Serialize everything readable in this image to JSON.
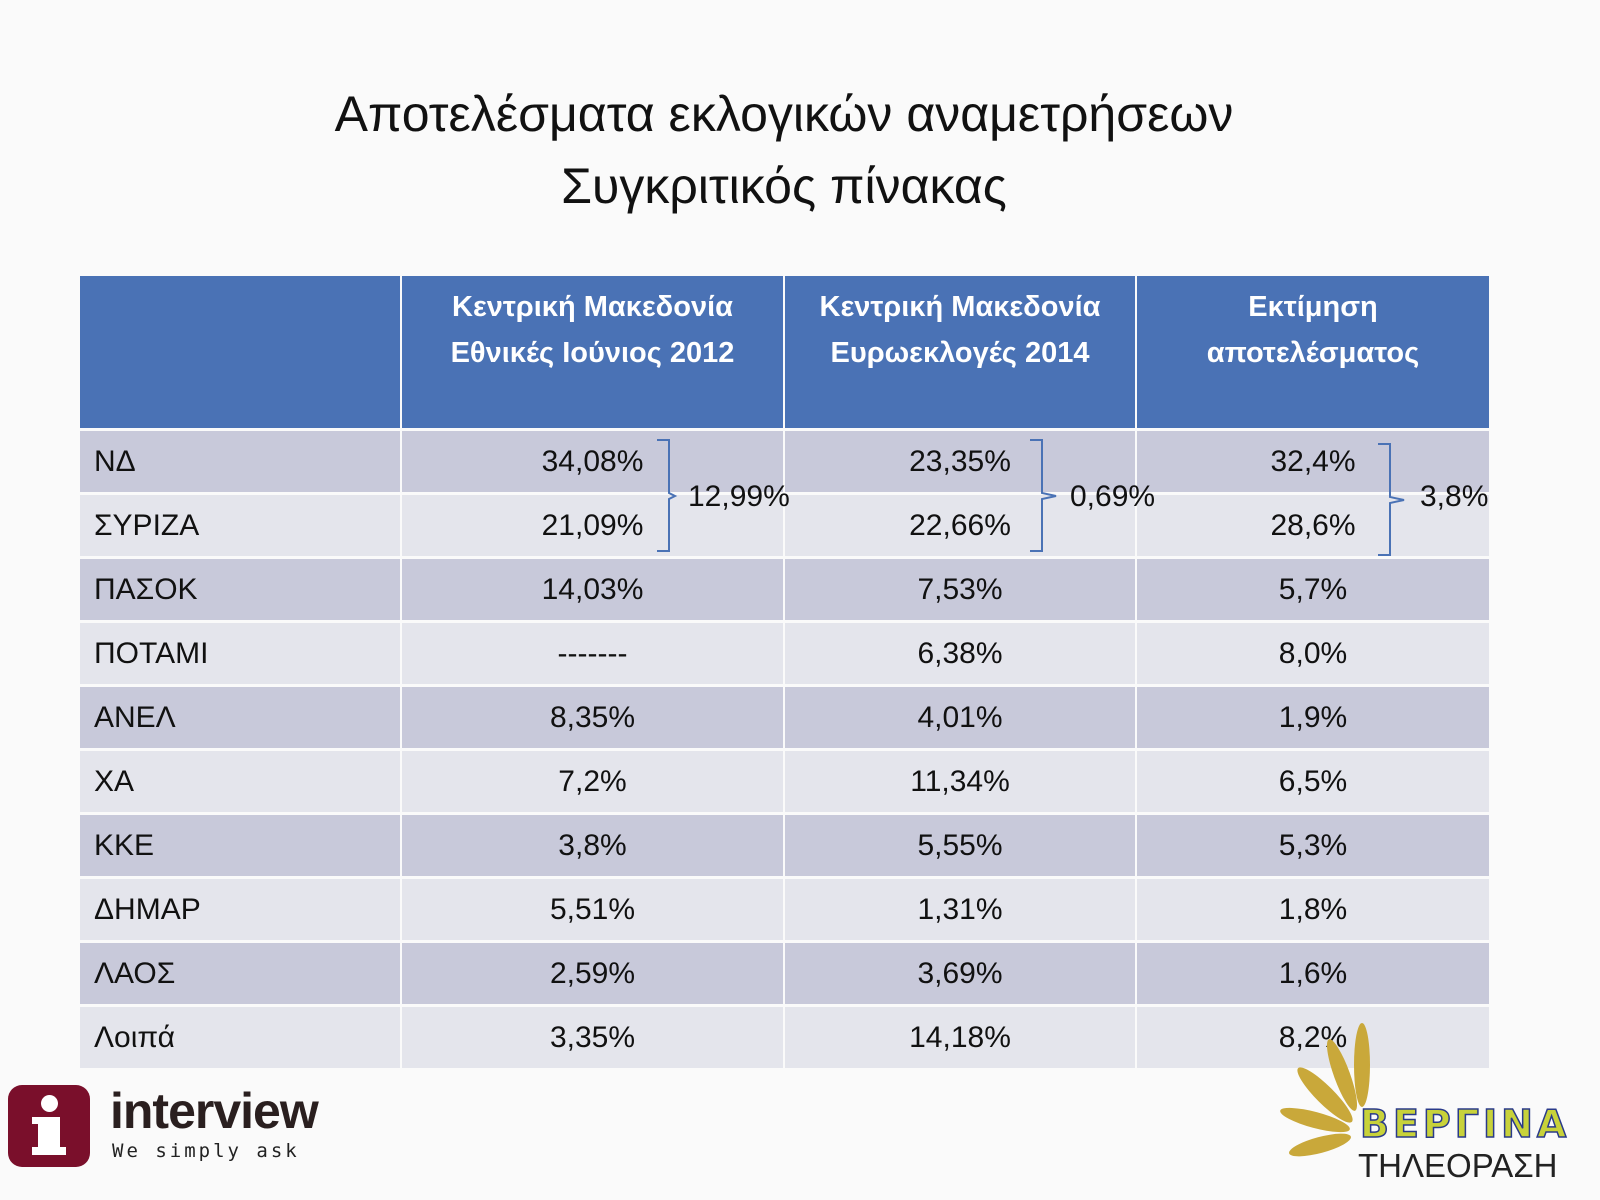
{
  "title": {
    "line1": "Αποτελέσματα εκλογικών αναμετρήσεων",
    "line2": "Συγκριτικός πίνακας"
  },
  "table": {
    "headers": [
      "",
      "Κεντρική Μακεδονία Εθνικές Ιούνιος 2012",
      "Κεντρική Μακεδονία Ευρωεκλογές 2014",
      "Εκτίμηση αποτελέσματος"
    ],
    "rows": [
      {
        "party": "ΝΔ",
        "v2012": "34,08%",
        "v2014": "23,35%",
        "estimate": "32,4%"
      },
      {
        "party": "ΣΥΡΙΖΑ",
        "v2012": "21,09%",
        "v2014": "22,66%",
        "estimate": "28,6%"
      },
      {
        "party": "ΠΑΣΟΚ",
        "v2012": "14,03%",
        "v2014": "7,53%",
        "estimate": "5,7%"
      },
      {
        "party": "ΠΟΤΑΜΙ",
        "v2012": "-------",
        "v2014": "6,38%",
        "estimate": "8,0%"
      },
      {
        "party": "ΑΝΕΛ",
        "v2012": "8,35%",
        "v2014": "4,01%",
        "estimate": "1,9%"
      },
      {
        "party": "ΧΑ",
        "v2012": "7,2%",
        "v2014": "11,34%",
        "estimate": "6,5%"
      },
      {
        "party": "ΚΚΕ",
        "v2012": "3,8%",
        "v2014": "5,55%",
        "estimate": "5,3%"
      },
      {
        "party": "ΔΗΜΑΡ",
        "v2012": "5,51%",
        "v2014": "1,31%",
        "estimate": "1,8%"
      },
      {
        "party": "ΛΑΟΣ",
        "v2012": "2,59%",
        "v2014": "3,69%",
        "estimate": "1,6%"
      },
      {
        "party": "Λοιπά",
        "v2012": "3,35%",
        "v2014": "14,18%",
        "estimate": "8,2%"
      }
    ],
    "differences": {
      "v2012": "12,99%",
      "v2014": "0,69%",
      "estimate": "3,8%"
    }
  },
  "logos": {
    "interview": {
      "name": "interview",
      "tagline": "We simply ask",
      "color": "#7a0f2b"
    },
    "vergina": {
      "name": "ΒΕΡΓΙΝΑ",
      "subtitle": "ΤΗΛΕΟΡΑΣΗ"
    }
  },
  "colors": {
    "header": "#4a72b5",
    "row_dark": "#c8c9da",
    "row_light": "#e4e5ec",
    "bracket": "#4a72b5"
  }
}
